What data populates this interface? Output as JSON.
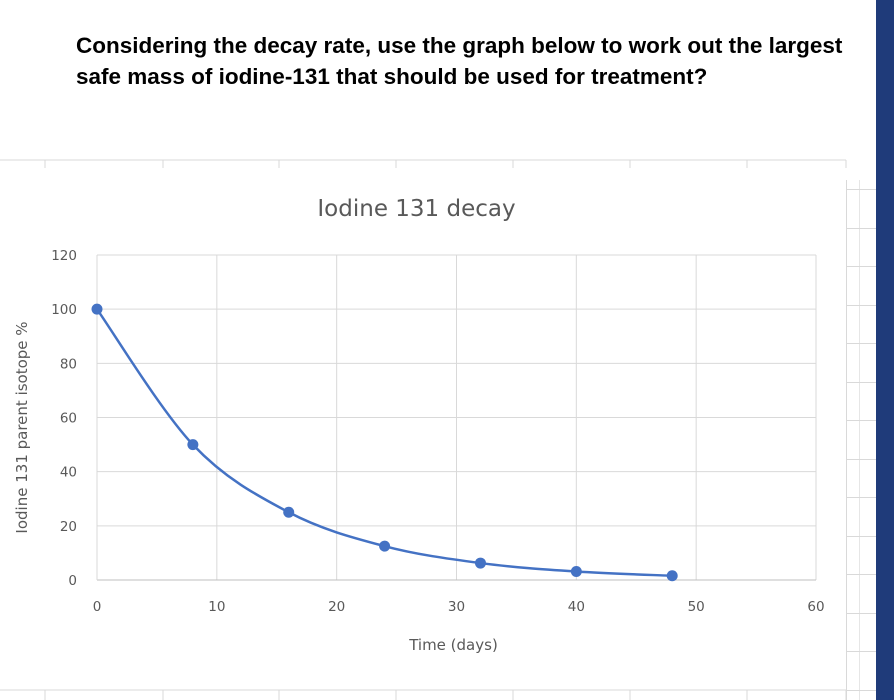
{
  "question": "Considering the decay rate, use the graph below to work out the largest safe mass of iodine-131 that should be used for treatment?",
  "colors": {
    "series": "#4472c4",
    "gridline": "#d9d9d9",
    "text": "#595959",
    "side_bar": "#1f3b7a"
  },
  "chart_data": {
    "type": "scatter",
    "title": "Iodine 131 decay",
    "xlabel": "Time (days)",
    "ylabel": "Iodine 131 parent isotope %",
    "xlim": [
      0,
      60
    ],
    "ylim": [
      0,
      120
    ],
    "x_ticks": [
      0,
      10,
      20,
      30,
      40,
      50,
      60
    ],
    "y_ticks": [
      0,
      20,
      40,
      60,
      80,
      100,
      120
    ],
    "grid": true,
    "legend": "none",
    "smooth_line": true,
    "series": [
      {
        "x": [
          0,
          8,
          16,
          24,
          32,
          40,
          48
        ],
        "y": [
          100,
          50,
          25,
          12.5,
          6.25,
          3.125,
          1.5625
        ]
      }
    ]
  }
}
